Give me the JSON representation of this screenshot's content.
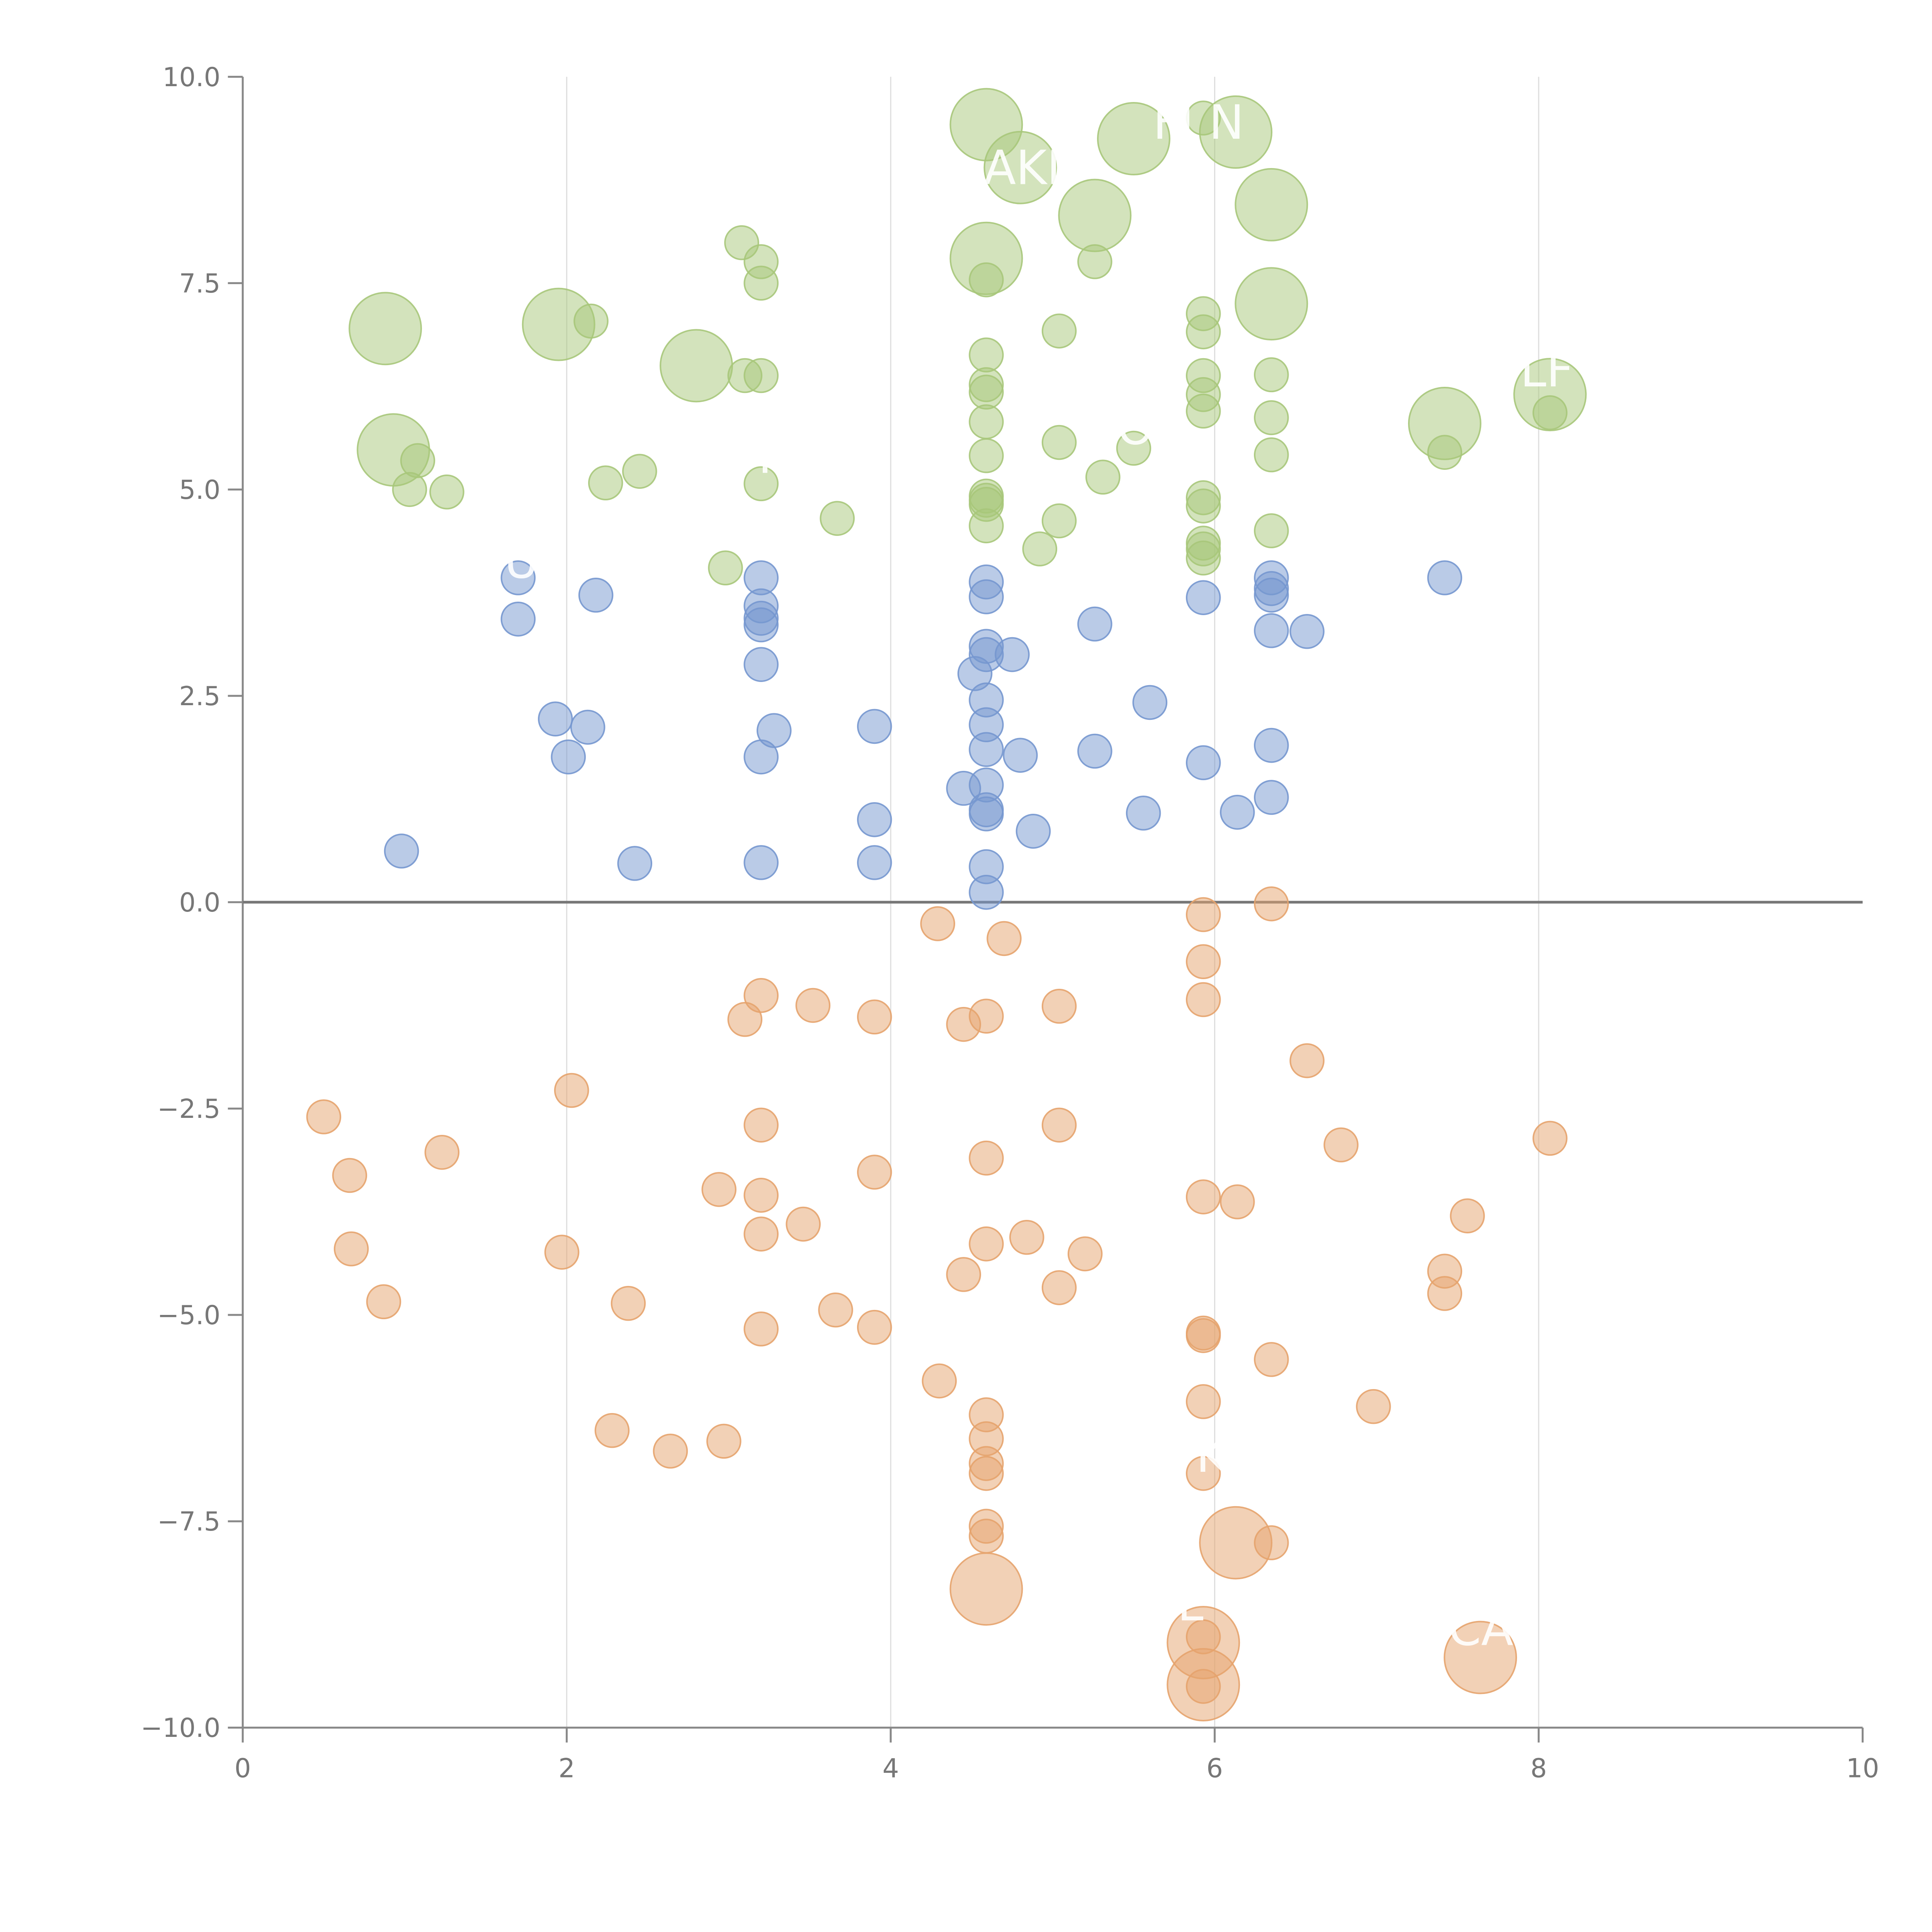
{
  "chart_data": {
    "type": "scatter",
    "title": "",
    "xlabel": "",
    "ylabel": "",
    "xlim": [
      0,
      10
    ],
    "ylim": [
      -10,
      10
    ],
    "grid": "vertical",
    "legend": "none",
    "x_ticks": [
      0,
      2,
      4,
      6,
      8,
      10
    ],
    "x_tick_labels": [
      "0",
      "2",
      "4",
      "6",
      "8",
      "10"
    ],
    "y_ticks": [
      10,
      7.5,
      5,
      2.5,
      0,
      -2.5,
      -5,
      -7.5,
      -10
    ],
    "y_tick_labels": [
      "10.0",
      "7.5",
      "5.0",
      "2.5",
      "0.0",
      "−2.5",
      "−5.0",
      "−7.5",
      "−10.0"
    ],
    "colors": {
      "green": "#A7C77A",
      "blue": "#7697CF",
      "orange": "#E6A36D",
      "axis": "#888888",
      "grid": "#DDDDDD",
      "zero_line": "#777777",
      "tick_text": "#777777"
    },
    "series": [
      {
        "color_key": "green",
        "points": [
          [
            0.88,
            6.95,
            2
          ],
          [
            1.95,
            7.0,
            2
          ],
          [
            2.15,
            7.04,
            0
          ],
          [
            2.8,
            6.5,
            2
          ],
          [
            0.93,
            5.48,
            2
          ],
          [
            1.08,
            5.35,
            0
          ],
          [
            1.03,
            5.0,
            0
          ],
          [
            1.26,
            4.97,
            0
          ],
          [
            2.24,
            5.08,
            0
          ],
          [
            2.45,
            5.22,
            0
          ],
          [
            3.08,
            7.99,
            0
          ],
          [
            3.2,
            7.76,
            0
          ],
          [
            3.2,
            7.5,
            0
          ],
          [
            3.1,
            6.38,
            0
          ],
          [
            3.2,
            6.38,
            0
          ],
          [
            3.2,
            5.07,
            0
          ],
          [
            3.67,
            4.65,
            0
          ],
          [
            2.98,
            4.05,
            0
          ],
          [
            4.59,
            9.42,
            2
          ],
          [
            4.59,
            7.8,
            2
          ],
          [
            4.59,
            7.54,
            0
          ],
          [
            4.59,
            6.63,
            0
          ],
          [
            4.59,
            6.27,
            0
          ],
          [
            4.59,
            6.18,
            0
          ],
          [
            4.59,
            5.82,
            0
          ],
          [
            4.59,
            5.41,
            0
          ],
          [
            4.59,
            4.92,
            0
          ],
          [
            4.59,
            4.87,
            0
          ],
          [
            4.59,
            4.82,
            0
          ],
          [
            4.59,
            4.56,
            0
          ],
          [
            4.8,
            8.9,
            2
          ],
          [
            5.04,
            6.92,
            0
          ],
          [
            5.04,
            5.57,
            0
          ],
          [
            5.04,
            4.62,
            0
          ],
          [
            4.92,
            4.28,
            0
          ],
          [
            5.26,
            8.32,
            2
          ],
          [
            5.26,
            7.76,
            0
          ],
          [
            5.5,
            9.25,
            2
          ],
          [
            5.31,
            5.15,
            0
          ],
          [
            5.5,
            5.5,
            0
          ],
          [
            5.93,
            9.5,
            0
          ],
          [
            5.93,
            7.13,
            0
          ],
          [
            5.93,
            6.91,
            0
          ],
          [
            5.93,
            6.38,
            0
          ],
          [
            5.93,
            6.15,
            0
          ],
          [
            5.93,
            5.95,
            0
          ],
          [
            5.93,
            4.9,
            0
          ],
          [
            5.93,
            4.8,
            0
          ],
          [
            5.93,
            4.35,
            0
          ],
          [
            5.93,
            4.28,
            0
          ],
          [
            5.93,
            4.17,
            0
          ],
          [
            6.13,
            9.33,
            2
          ],
          [
            6.35,
            8.45,
            2
          ],
          [
            6.35,
            7.25,
            2
          ],
          [
            6.35,
            6.39,
            0
          ],
          [
            6.35,
            5.87,
            0
          ],
          [
            6.35,
            5.42,
            0
          ],
          [
            6.35,
            4.5,
            0
          ],
          [
            7.42,
            5.8,
            2
          ],
          [
            7.42,
            5.45,
            0
          ],
          [
            8.07,
            6.15,
            2
          ],
          [
            8.07,
            5.93,
            0
          ]
        ]
      },
      {
        "color_key": "blue",
        "points": [
          [
            1.7,
            3.93,
            0
          ],
          [
            1.7,
            3.43,
            0
          ],
          [
            2.18,
            3.72,
            0
          ],
          [
            1.93,
            2.22,
            0
          ],
          [
            2.13,
            2.12,
            0
          ],
          [
            2.01,
            1.76,
            0
          ],
          [
            0.98,
            0.62,
            0
          ],
          [
            2.42,
            0.47,
            0
          ],
          [
            3.2,
            3.93,
            0
          ],
          [
            3.2,
            3.59,
            0
          ],
          [
            3.2,
            3.44,
            0
          ],
          [
            3.2,
            3.36,
            0
          ],
          [
            3.2,
            2.88,
            0
          ],
          [
            3.28,
            2.08,
            0
          ],
          [
            3.2,
            1.76,
            0
          ],
          [
            3.2,
            0.48,
            0
          ],
          [
            3.9,
            2.13,
            0
          ],
          [
            3.9,
            1.0,
            0
          ],
          [
            3.9,
            0.48,
            0
          ],
          [
            4.59,
            3.88,
            0
          ],
          [
            4.59,
            3.7,
            0
          ],
          [
            4.59,
            3.1,
            0
          ],
          [
            4.59,
            3.0,
            0
          ],
          [
            4.52,
            2.77,
            0
          ],
          [
            4.59,
            2.45,
            0
          ],
          [
            4.59,
            2.15,
            0
          ],
          [
            4.59,
            1.85,
            0
          ],
          [
            4.59,
            1.42,
            0
          ],
          [
            4.45,
            1.38,
            0
          ],
          [
            4.59,
            1.12,
            0
          ],
          [
            4.59,
            1.07,
            0
          ],
          [
            4.59,
            0.43,
            0
          ],
          [
            4.59,
            0.12,
            0
          ],
          [
            4.75,
            3.0,
            0
          ],
          [
            4.8,
            1.78,
            0
          ],
          [
            4.88,
            0.86,
            0
          ],
          [
            5.26,
            3.37,
            0
          ],
          [
            5.26,
            1.83,
            0
          ],
          [
            5.6,
            2.42,
            0
          ],
          [
            5.56,
            1.08,
            0
          ],
          [
            5.93,
            3.69,
            0
          ],
          [
            5.93,
            1.69,
            0
          ],
          [
            6.14,
            1.09,
            0
          ],
          [
            6.35,
            3.93,
            0
          ],
          [
            6.35,
            3.8,
            0
          ],
          [
            6.35,
            3.72,
            0
          ],
          [
            6.35,
            3.29,
            0
          ],
          [
            6.57,
            3.28,
            0
          ],
          [
            6.35,
            1.9,
            0
          ],
          [
            6.35,
            1.27,
            0
          ],
          [
            7.42,
            3.93,
            0
          ]
        ]
      },
      {
        "color_key": "orange",
        "points": [
          [
            0.5,
            -2.6,
            0
          ],
          [
            0.66,
            -3.31,
            0
          ],
          [
            0.67,
            -4.2,
            0
          ],
          [
            0.87,
            -4.84,
            0
          ],
          [
            1.23,
            -3.03,
            0
          ],
          [
            2.03,
            -2.28,
            0
          ],
          [
            1.97,
            -4.24,
            0
          ],
          [
            2.38,
            -4.86,
            0
          ],
          [
            2.28,
            -6.4,
            0
          ],
          [
            2.64,
            -6.65,
            0
          ],
          [
            2.97,
            -6.53,
            0
          ],
          [
            2.94,
            -3.48,
            0
          ],
          [
            3.1,
            -1.42,
            0
          ],
          [
            3.2,
            -1.13,
            0
          ],
          [
            3.2,
            -2.7,
            0
          ],
          [
            3.2,
            -3.55,
            0
          ],
          [
            3.2,
            -4.02,
            0
          ],
          [
            3.2,
            -5.17,
            0
          ],
          [
            3.52,
            -1.25,
            0
          ],
          [
            3.46,
            -3.9,
            0
          ],
          [
            3.66,
            -4.94,
            0
          ],
          [
            3.9,
            -1.39,
            0
          ],
          [
            3.9,
            -3.27,
            0
          ],
          [
            3.9,
            -5.15,
            0
          ],
          [
            4.29,
            -0.26,
            0
          ],
          [
            4.3,
            -5.8,
            0
          ],
          [
            4.45,
            -1.48,
            0
          ],
          [
            4.45,
            -4.51,
            0
          ],
          [
            4.59,
            -1.38,
            0
          ],
          [
            4.59,
            -3.1,
            0
          ],
          [
            4.59,
            -4.14,
            0
          ],
          [
            4.59,
            -6.21,
            0
          ],
          [
            4.59,
            -6.5,
            0
          ],
          [
            4.59,
            -6.8,
            0
          ],
          [
            4.59,
            -6.92,
            0
          ],
          [
            4.59,
            -7.56,
            0
          ],
          [
            4.59,
            -7.68,
            0
          ],
          [
            4.59,
            -8.32,
            2
          ],
          [
            4.7,
            -0.44,
            0
          ],
          [
            4.84,
            -4.06,
            0
          ],
          [
            5.04,
            -1.26,
            0
          ],
          [
            5.04,
            -2.7,
            0
          ],
          [
            5.04,
            -4.67,
            0
          ],
          [
            5.2,
            -4.26,
            0
          ],
          [
            5.93,
            -0.15,
            0
          ],
          [
            5.93,
            -0.72,
            0
          ],
          [
            5.93,
            -1.18,
            0
          ],
          [
            5.93,
            -3.57,
            0
          ],
          [
            5.93,
            -5.22,
            0
          ],
          [
            5.93,
            -5.25,
            0
          ],
          [
            5.93,
            -6.05,
            0
          ],
          [
            5.93,
            -6.92,
            0
          ],
          [
            5.93,
            -8.97,
            2
          ],
          [
            5.93,
            -8.9,
            0
          ],
          [
            5.93,
            -9.48,
            2
          ],
          [
            5.93,
            -9.5,
            0
          ],
          [
            6.14,
            -3.63,
            0
          ],
          [
            6.13,
            -7.76,
            2
          ],
          [
            6.35,
            -0.02,
            0
          ],
          [
            6.35,
            -5.54,
            0
          ],
          [
            6.35,
            -7.76,
            0
          ],
          [
            6.57,
            -1.92,
            0
          ],
          [
            6.78,
            -2.94,
            0
          ],
          [
            6.98,
            -6.11,
            0
          ],
          [
            7.42,
            -4.47,
            0
          ],
          [
            7.42,
            -4.74,
            0
          ],
          [
            7.56,
            -3.8,
            0
          ],
          [
            7.64,
            -9.15,
            2
          ],
          [
            8.07,
            -2.86,
            0
          ]
        ]
      }
    ],
    "annotations": [
      "U",
      "AKL",
      "FJ N",
      "SOL",
      "LF",
      "PL",
      "K",
      "ICA",
      "L"
    ]
  }
}
